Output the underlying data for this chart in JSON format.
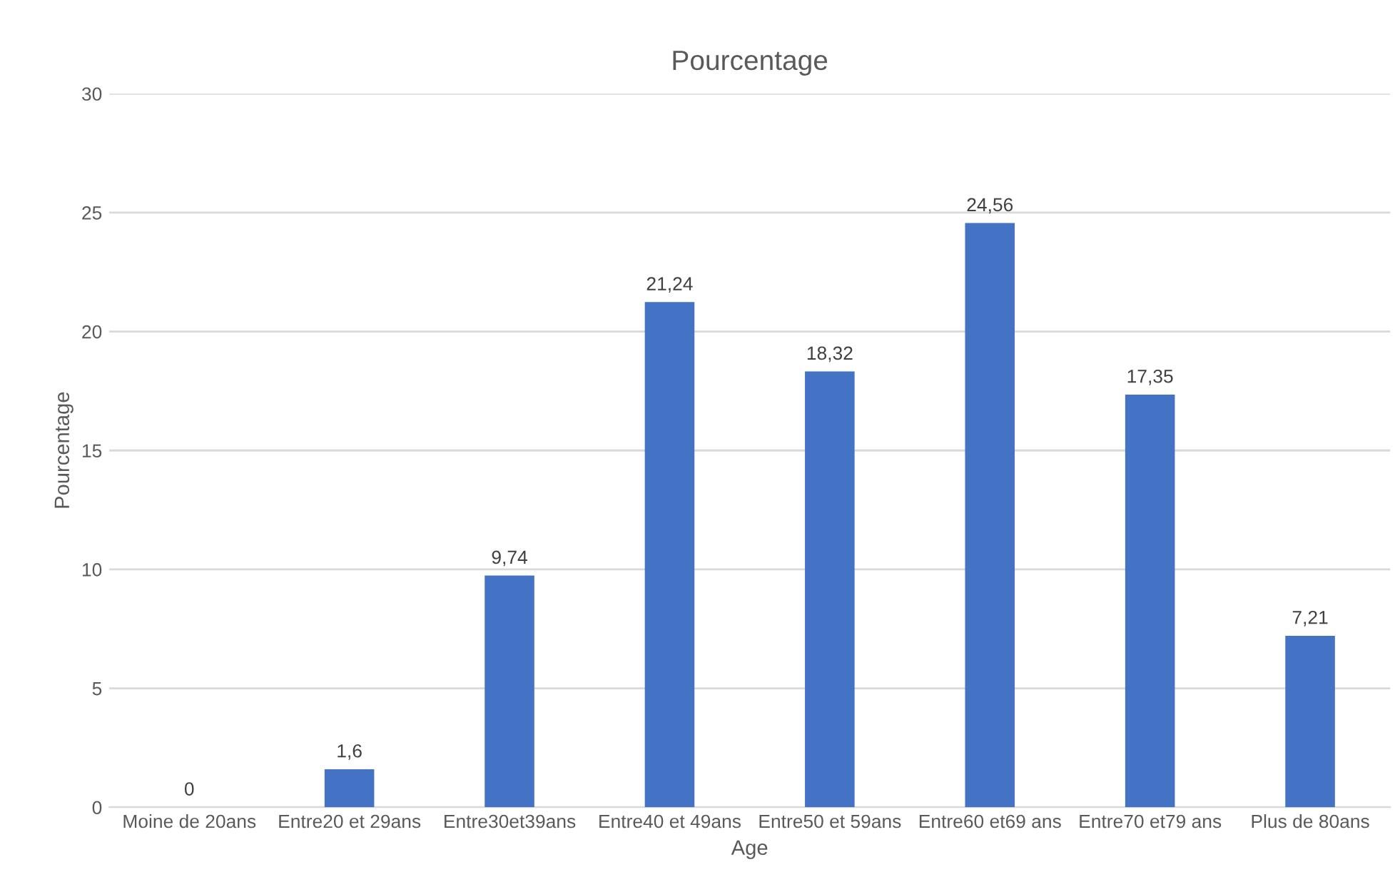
{
  "chart_data": {
    "type": "bar",
    "title": "Pourcentage",
    "xlabel": "Age",
    "ylabel": "Pourcentage",
    "categories": [
      "Moine de 20ans",
      "Entre20 et 29ans",
      "Entre30et39ans",
      "Entre40 et 49ans",
      "Entre50 et 59ans",
      "Entre60 et69 ans",
      "Entre70 et79 ans",
      "Plus de 80ans"
    ],
    "values": [
      0,
      1.6,
      9.74,
      21.24,
      18.32,
      24.56,
      17.35,
      7.21
    ],
    "value_labels": [
      "0",
      "1,6",
      "9,74",
      "21,24",
      "18,32",
      "24,56",
      "17,35",
      "7,21"
    ],
    "color": "#4472c4",
    "ylim": [
      0,
      30
    ],
    "yticks": [
      0,
      5,
      10,
      15,
      20,
      25,
      30
    ],
    "grid": "y"
  }
}
